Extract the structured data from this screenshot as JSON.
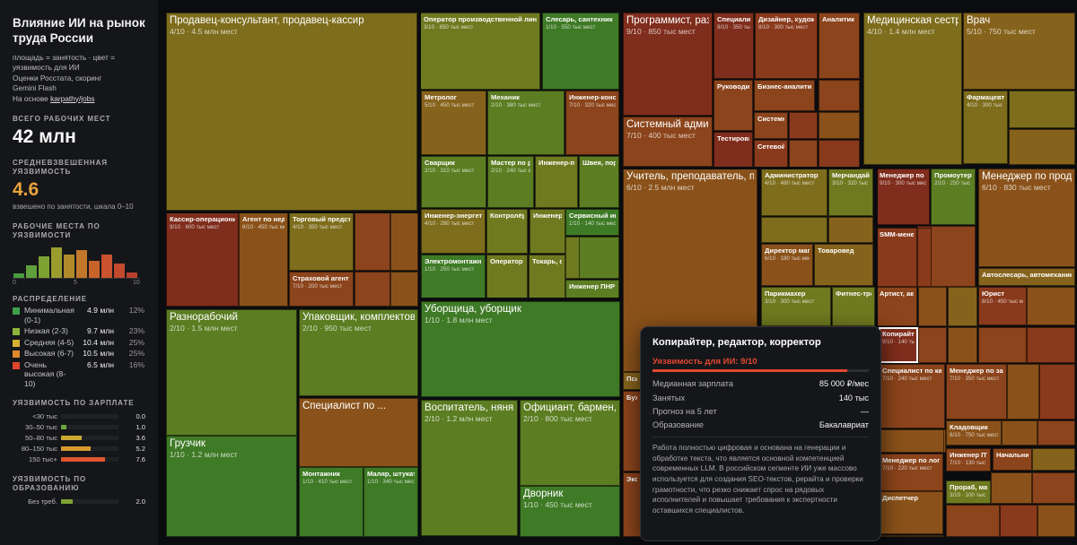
{
  "sidebar": {
    "title": "Влияние ИИ на рынок труда России",
    "desc_lines": [
      "площадь = занятость · цвет =",
      "уязвимость для ИИ",
      "Оценки Росстата, скоринг",
      "Gemini Flash"
    ],
    "based_on": "На основе",
    "based_link": "karpathy/jobs",
    "total_label": "ВСЕГО РАБОЧИХ МЕСТ",
    "total_value": "42 млн",
    "weighted_label": "СРЕДНЕВЗВЕШЕННАЯ УЯЗВИМОСТЬ",
    "weighted_value": "4.6",
    "weighted_sub": "взвешено по занятости, шкала 0–10",
    "histo_label": "РАБОЧИЕ МЕСТА ПО УЯЗВИМОСТИ",
    "histo_ticks": [
      "0",
      "5",
      "10"
    ],
    "histo_values": [
      0.5,
      1.5,
      2.5,
      3.6,
      2.7,
      3.3,
      2.0,
      2.7,
      1.7,
      0.6
    ],
    "histo_colors": [
      "#4a9a3e",
      "#5fa03c",
      "#7ea232",
      "#9a9c2e",
      "#b08a2a",
      "#c2782a",
      "#c8632a",
      "#c9532c",
      "#c44a2e",
      "#b8402c"
    ],
    "distribution_label": "РАСПРЕДЕЛЕНИЕ",
    "distribution": [
      {
        "name": "Минимальная (0-1)",
        "count": "4.9 млн",
        "pct": "12%",
        "color": "#3fa04a"
      },
      {
        "name": "Низкая (2-3)",
        "count": "9.7 млн",
        "pct": "23%",
        "color": "#8eb53a"
      },
      {
        "name": "Средняя (4-5)",
        "count": "10.4 млн",
        "pct": "25%",
        "color": "#d4b12e"
      },
      {
        "name": "Высокая (6-7)",
        "count": "10.5 млн",
        "pct": "25%",
        "color": "#e08a2e"
      },
      {
        "name": "Очень высокая (8-10)",
        "count": "6.5 млн",
        "pct": "16%",
        "color": "#e0452e"
      }
    ],
    "salary_label": "УЯЗВИМОСТЬ ПО ЗАРПЛАТЕ",
    "salary": [
      {
        "label": "<30 тыс",
        "value": "0.0",
        "frac": 0.0,
        "color": "#3fa04a"
      },
      {
        "label": "30–50 тыс",
        "value": "1.0",
        "frac": 0.1,
        "color": "#6aa63c"
      },
      {
        "label": "50–80 тыс",
        "value": "3.6",
        "frac": 0.36,
        "color": "#c9a832"
      },
      {
        "label": "80–150 тыс",
        "value": "5.2",
        "frac": 0.52,
        "color": "#d79a2e"
      },
      {
        "label": "150 тыс+",
        "value": "7.6",
        "frac": 0.76,
        "color": "#e0562e"
      }
    ],
    "edu_label": "УЯЗВИМОСТЬ ПО ОБРАЗОВАНИЮ",
    "edu": [
      {
        "label": "Без треб.",
        "value": "2.0",
        "frac": 0.2,
        "color": "#7ea232"
      }
    ]
  },
  "chart_data": {
    "type": "treemap",
    "title": "Влияние ИИ на рынок труда России",
    "size_metric": "занятость",
    "color_metric": "уязвимость для ИИ (0–10)",
    "cells": [
      {
        "name": "Продавец-консультант, продавец-кассир",
        "score": "4/10",
        "jobs": "4.5 млн мест"
      },
      {
        "name": "Оператор производственной линии",
        "score": "3/10",
        "jobs": "850 тыс мест"
      },
      {
        "name": "Слесарь, сантехник",
        "score": "1/10",
        "jobs": "550 тыс мест"
      },
      {
        "name": "Программист, разработчик",
        "score": "9/10",
        "jobs": "850 тыс мест"
      },
      {
        "name": "Специалист техподдержки",
        "score": "9/10",
        "jobs": "350 тыс мест"
      },
      {
        "name": "Дизайнер, художник",
        "score": "8/10",
        "jobs": "300 тыс мест"
      },
      {
        "name": "Аналитик",
        "score": "",
        "jobs": ""
      },
      {
        "name": "Медицинская сестра",
        "score": "4/10",
        "jobs": "1.4 млн мест"
      },
      {
        "name": "Врач",
        "score": "5/10",
        "jobs": "750 тыс мест"
      },
      {
        "name": "Метролог",
        "score": "5/10",
        "jobs": "450 тыс мест"
      },
      {
        "name": "Механик",
        "score": "2/10",
        "jobs": "380 тыс мест"
      },
      {
        "name": "Инженер-конструктор",
        "score": "7/10",
        "jobs": "320 тыс мест"
      },
      {
        "name": "Руководитель",
        "score": "",
        "jobs": ""
      },
      {
        "name": "Бизнес-аналитик",
        "score": "",
        "jobs": ""
      },
      {
        "name": "Системный аналитик",
        "score": "",
        "jobs": ""
      },
      {
        "name": "Тестировщик",
        "score": "",
        "jobs": ""
      },
      {
        "name": "Сетевой инженер",
        "score": "",
        "jobs": ""
      },
      {
        "name": "Фармацевт",
        "score": "4/10",
        "jobs": "300 тыс мест"
      },
      {
        "name": "Системный администратор",
        "score": "7/10",
        "jobs": "400 тыс мест"
      },
      {
        "name": "Сварщик",
        "score": "2/10",
        "jobs": "310 тыс мест"
      },
      {
        "name": "Мастер по ремонту",
        "score": "2/10",
        "jobs": "240 тыс мест"
      },
      {
        "name": "Инженер-проектировщик",
        "score": "",
        "jobs": ""
      },
      {
        "name": "Швея, портной",
        "score": "",
        "jobs": ""
      },
      {
        "name": "Учитель, преподаватель, педагог",
        "score": "6/10",
        "jobs": "2.5 млн мест"
      },
      {
        "name": "Администратор",
        "score": "4/10",
        "jobs": "480 тыс мест"
      },
      {
        "name": "Мерчандайзер",
        "score": "3/10",
        "jobs": "320 тыс мест"
      },
      {
        "name": "Менеджер по продажам",
        "score": "9/10",
        "jobs": "300 тыс мест"
      },
      {
        "name": "Промоутер",
        "score": "2/10",
        "jobs": "250 тыс мест"
      },
      {
        "name": "Менеджер по продажам",
        "score": "6/10",
        "jobs": "830 тыс мест"
      },
      {
        "name": "Кассир-операционист",
        "score": "9/10",
        "jobs": "600 тыс мест"
      },
      {
        "name": "Агент по недвижимости",
        "score": "6/10",
        "jobs": "450 тыс мест"
      },
      {
        "name": "Торговый представитель",
        "score": "4/10",
        "jobs": "350 тыс мест"
      },
      {
        "name": "Инженер-энергетик",
        "score": "4/10",
        "jobs": "280 тыс мест"
      },
      {
        "name": "Контролёр",
        "score": "",
        "jobs": ""
      },
      {
        "name": "Инженер",
        "score": "",
        "jobs": ""
      },
      {
        "name": "Сервисный инженер",
        "score": "1/10",
        "jobs": "140 тыс мест"
      },
      {
        "name": "Страховой агент",
        "score": "7/10",
        "jobs": "200 тыс мест"
      },
      {
        "name": "Электромонтажник",
        "score": "1/10",
        "jobs": "250 тыс мест"
      },
      {
        "name": "Оператор",
        "score": "",
        "jobs": ""
      },
      {
        "name": "Токарь, станочник",
        "score": "",
        "jobs": ""
      },
      {
        "name": "Инженер ПНР",
        "score": "",
        "jobs": ""
      },
      {
        "name": "Директор магазина",
        "score": "6/10",
        "jobs": "180 тыс мест"
      },
      {
        "name": "Товаровед",
        "score": "",
        "jobs": ""
      },
      {
        "name": "SMM-менеджер",
        "score": "",
        "jobs": ""
      },
      {
        "name": "Автослесарь, автомеханик",
        "score": "",
        "jobs": ""
      },
      {
        "name": "Парикмахер",
        "score": "3/10",
        "jobs": "300 тыс мест"
      },
      {
        "name": "Фитнес-тренер",
        "score": "",
        "jobs": ""
      },
      {
        "name": "Артист, актёр",
        "score": "",
        "jobs": ""
      },
      {
        "name": "Юрист",
        "score": "8/10",
        "jobs": "450 тыс мест"
      },
      {
        "name": "Разнорабочий",
        "score": "2/10",
        "jobs": "1.5 млн мест"
      },
      {
        "name": "Упаковщик, комплектовщик",
        "score": "2/10",
        "jobs": "950 тыс мест"
      },
      {
        "name": "Уборщица, уборщик",
        "score": "1/10",
        "jobs": "1.8 млн мест"
      },
      {
        "name": "Копирайтер, редактор, корректор",
        "score": "9/10",
        "jobs": "140 тыс мест"
      },
      {
        "name": "Специалист по кадрам",
        "score": "7/10",
        "jobs": "240 тыс мест"
      },
      {
        "name": "Менеджер по закупкам",
        "score": "7/10",
        "jobs": "350 тыс мест"
      },
      {
        "name": "Кладовщик",
        "score": "6/10",
        "jobs": "750 тыс мест"
      },
      {
        "name": "Специалист по ...",
        "score": "",
        "jobs": ""
      },
      {
        "name": "Воспитатель, няня",
        "score": "2/10",
        "jobs": "1.2 млн мест"
      },
      {
        "name": "Официант, бармен, бариста",
        "score": "2/10",
        "jobs": "800 тыс мест"
      },
      {
        "name": "Менеджер по логистике",
        "score": "7/10",
        "jobs": "220 тыс мест"
      },
      {
        "name": "Инженер ПТО",
        "score": "7/10",
        "jobs": "130 тыс мест"
      },
      {
        "name": "Начальник",
        "score": "",
        "jobs": ""
      },
      {
        "name": "Грузчик",
        "score": "1/10",
        "jobs": "1.2 млн мест"
      },
      {
        "name": "Прораб, мастер",
        "score": "3/10",
        "jobs": "100 тыс мест"
      },
      {
        "name": "Монтажник",
        "score": "1/10",
        "jobs": "410 тыс мест"
      },
      {
        "name": "Маляр, штукатур",
        "score": "1/10",
        "jobs": "340 тыс мест"
      },
      {
        "name": "Дворник",
        "score": "1/10",
        "jobs": "450 тыс мест"
      },
      {
        "name": "Диспетчер",
        "score": "",
        "jobs": ""
      },
      {
        "name": "Психолог",
        "score": "",
        "jobs": ""
      },
      {
        "name": "Бухгалтер",
        "score": "",
        "jobs": ""
      },
      {
        "name": "Экономист",
        "score": "",
        "jobs": ""
      }
    ]
  },
  "tooltip": {
    "title": "Копирайтер, редактор, корректор",
    "vuln_label": "Уязвимость для ИИ: 9/10",
    "vuln_score": 9,
    "rows": [
      {
        "k": "Медианная зарплата",
        "v": "85 000 ₽/мес"
      },
      {
        "k": "Занятых",
        "v": "140 тыс"
      },
      {
        "k": "Прогноз на 5 лет",
        "v": "—"
      },
      {
        "k": "Образование",
        "v": "Бакалавриат"
      }
    ],
    "description": "Работа полностью цифровая и основана на генерации и обработке текста, что является основной компетенцией современных LLM. В российском сегменте ИИ уже массово используется для создания SEO-текстов, рерайта и проверки грамотности, что резко снижает спрос на рядовых исполнителей и повышает требования к экспертности оставшихся специалистов."
  }
}
